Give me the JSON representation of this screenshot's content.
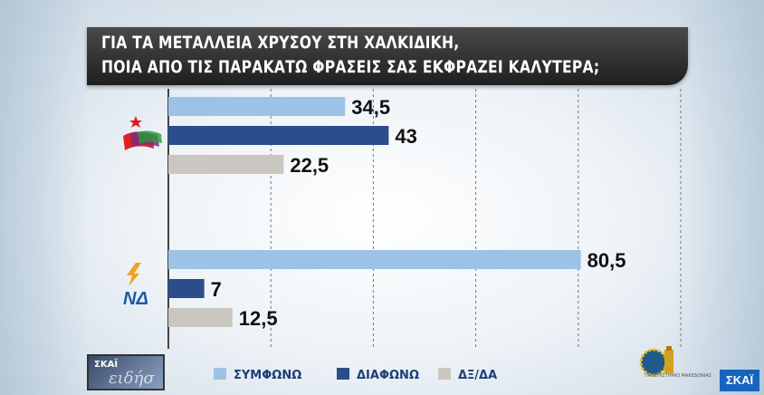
{
  "title": {
    "line1": "ΓΙΑ ΤΑ ΜΕΤΑΛΛΕΙΑ ΧΡΥΣΟΥ ΣΤΗ ΧΑΛΚΙΔΙΚΗ,",
    "line2": "ΠΟΙΑ ΑΠΟ ΤΙΣ ΠΑΡΑΚΑΤΩ ΦΡΑΣΕΙΣ ΣΑΣ ΕΚΦΡΑΖΕΙ ΚΑΛΥΤΕΡΑ;"
  },
  "colors": {
    "agree": "#9cc3e6",
    "disagree": "#2b4d8c",
    "dk": "#c9c7c0"
  },
  "groups": [
    {
      "logo": "syriza-logo",
      "label": "",
      "values": [
        34.5,
        43,
        22.5
      ],
      "value_labels": [
        "34,5",
        "43",
        "22,5"
      ]
    },
    {
      "logo": "nd-logo",
      "label": "ΝΔ",
      "values": [
        80.5,
        7,
        12.5
      ],
      "value_labels": [
        "80,5",
        "7",
        "12,5"
      ]
    }
  ],
  "chart_data": {
    "type": "bar",
    "orientation": "horizontal",
    "title": "ΓΙΑ ΤΑ ΜΕΤΑΛΛΕΙΑ ΧΡΥΣΟΥ ΣΤΗ ΧΑΛΚΙΔΙΚΗ, ΠΟΙΑ ΑΠΟ ΤΙΣ ΠΑΡΑΚΑΤΩ ΦΡΑΣΕΙΣ ΣΑΣ ΕΚΦΡΑΖΕΙ ΚΑΛΥΤΕΡΑ;",
    "categories": [
      "ΣΥΡΙΖΑ",
      "ΝΔ"
    ],
    "series": [
      {
        "name": "ΣΥΜΦΩΝΩ",
        "values": [
          34.5,
          80.5
        ]
      },
      {
        "name": "ΔΙΑΦΩΝΩ",
        "values": [
          43,
          7
        ]
      },
      {
        "name": "ΔΞ/ΔΑ",
        "values": [
          22.5,
          12.5
        ]
      }
    ],
    "xlim": [
      0,
      100
    ],
    "grid": true,
    "legend": "bottom"
  },
  "legend": [
    {
      "label": "ΣΥΜΦΩΝΩ",
      "color": "#9cc3e6"
    },
    {
      "label": "ΔΙΑΦΩΝΩ",
      "color": "#2b4d8c"
    },
    {
      "label": "ΔΞ/ΔΑ",
      "color": "#c9c7c0"
    }
  ],
  "overlay": {
    "thumb_text": "ΣΚΑΪ",
    "thumb_sub": "ειδήσ",
    "right_logo_text": "ΠΑΝΕΠΙΣΤΗΜΙΟ ΜΑΚΕΔΟΝΙΑΣ",
    "channel_logo": "ΣΚΑΪ"
  }
}
